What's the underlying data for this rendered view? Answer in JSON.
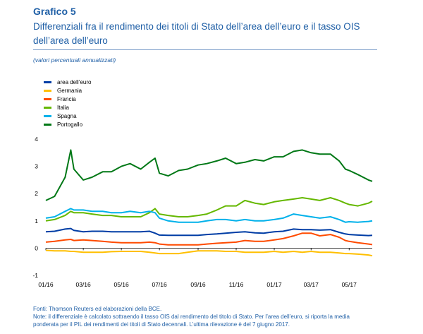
{
  "header": {
    "chart_number": "Grafico 5",
    "title_line1": "Differenziali fra il rendimento dei titoli di Stato dell’area dell’euro e il tasso OIS",
    "title_line2": "dell’area dell’euro",
    "units": "(valori percentuali annualizzati)"
  },
  "footnotes": {
    "source": "Fonti: Thomson Reuters ed elaborazioni della BCE.",
    "note_line1": "Note: il differenziale è calcolato sottraendo il tasso OIS dal rendimento del titolo di Stato. Per l’area dell’euro, si riporta la media",
    "note_line2": "ponderata per il PIL dei rendimenti dei titoli di Stato decennali. L’ultima rilevazione è del 7 giugno 2017."
  },
  "chart_data": {
    "type": "line",
    "title": "Differenziali fra il rendimento dei titoli di Stato dell’area dell’euro e il tasso OIS dell’area dell’euro",
    "xlabel": "",
    "ylabel": "(valori percentuali annualizzati)",
    "ylim": [
      -1,
      4
    ],
    "yticks": [
      -1,
      0,
      1,
      2,
      3,
      4
    ],
    "x_start": "2016-01-01",
    "x_end": "2017-06-07",
    "x_tick_labels": [
      "01/16",
      "03/16",
      "05/16",
      "07/16",
      "09/16",
      "11/16",
      "01/17",
      "03/17",
      "05/17"
    ],
    "x_ticks": [
      "2016-01-01",
      "2016-03-01",
      "2016-05-01",
      "2016-07-01",
      "2016-09-01",
      "2016-11-01",
      "2017-01-01",
      "2017-03-01",
      "2017-05-01"
    ],
    "grid": false,
    "legend_position": "top-left",
    "x": [
      "2016-01-01",
      "2016-01-15",
      "2016-02-01",
      "2016-02-10",
      "2016-02-15",
      "2016-03-01",
      "2016-03-15",
      "2016-04-01",
      "2016-04-15",
      "2016-05-01",
      "2016-05-15",
      "2016-06-01",
      "2016-06-15",
      "2016-06-24",
      "2016-07-01",
      "2016-07-15",
      "2016-08-01",
      "2016-08-15",
      "2016-09-01",
      "2016-09-15",
      "2016-10-01",
      "2016-10-15",
      "2016-11-01",
      "2016-11-15",
      "2016-12-01",
      "2016-12-15",
      "2017-01-01",
      "2017-01-15",
      "2017-02-01",
      "2017-02-15",
      "2017-03-01",
      "2017-03-15",
      "2017-04-01",
      "2017-04-15",
      "2017-04-25",
      "2017-05-01",
      "2017-05-15",
      "2017-06-01",
      "2017-06-07"
    ],
    "series": [
      {
        "name": "area dell’euro",
        "color": "#003da5",
        "values": [
          0.6,
          0.62,
          0.7,
          0.72,
          0.65,
          0.6,
          0.62,
          0.62,
          0.6,
          0.6,
          0.6,
          0.6,
          0.62,
          0.55,
          0.48,
          0.47,
          0.47,
          0.47,
          0.47,
          0.5,
          0.52,
          0.55,
          0.58,
          0.6,
          0.56,
          0.55,
          0.6,
          0.62,
          0.7,
          0.68,
          0.68,
          0.66,
          0.68,
          0.58,
          0.52,
          0.5,
          0.48,
          0.46,
          0.47
        ]
      },
      {
        "name": "Germania",
        "color": "#ffbf00",
        "values": [
          -0.08,
          -0.1,
          -0.1,
          -0.12,
          -0.12,
          -0.15,
          -0.15,
          -0.15,
          -0.13,
          -0.12,
          -0.12,
          -0.12,
          -0.15,
          -0.18,
          -0.2,
          -0.2,
          -0.2,
          -0.15,
          -0.1,
          -0.1,
          -0.1,
          -0.12,
          -0.12,
          -0.15,
          -0.15,
          -0.15,
          -0.12,
          -0.15,
          -0.12,
          -0.15,
          -0.12,
          -0.15,
          -0.15,
          -0.18,
          -0.2,
          -0.2,
          -0.22,
          -0.25,
          -0.28
        ]
      },
      {
        "name": "Francia",
        "color": "#ff4b00",
        "values": [
          0.22,
          0.25,
          0.3,
          0.32,
          0.28,
          0.3,
          0.28,
          0.25,
          0.22,
          0.2,
          0.2,
          0.2,
          0.22,
          0.2,
          0.15,
          0.12,
          0.12,
          0.12,
          0.12,
          0.15,
          0.18,
          0.2,
          0.22,
          0.28,
          0.25,
          0.25,
          0.3,
          0.35,
          0.45,
          0.55,
          0.55,
          0.45,
          0.5,
          0.4,
          0.28,
          0.25,
          0.2,
          0.15,
          0.13
        ]
      },
      {
        "name": "Italia",
        "color": "#65b800",
        "values": [
          1.0,
          1.05,
          1.2,
          1.35,
          1.3,
          1.3,
          1.25,
          1.2,
          1.2,
          1.15,
          1.15,
          1.15,
          1.3,
          1.45,
          1.25,
          1.2,
          1.15,
          1.15,
          1.2,
          1.25,
          1.4,
          1.55,
          1.55,
          1.75,
          1.65,
          1.6,
          1.7,
          1.75,
          1.8,
          1.85,
          1.8,
          1.75,
          1.85,
          1.75,
          1.65,
          1.6,
          1.55,
          1.65,
          1.72
        ]
      },
      {
        "name": "Spagna",
        "color": "#00b1ea",
        "values": [
          1.1,
          1.15,
          1.35,
          1.45,
          1.4,
          1.4,
          1.35,
          1.35,
          1.3,
          1.3,
          1.35,
          1.3,
          1.35,
          1.3,
          1.1,
          1.0,
          0.95,
          0.95,
          0.95,
          1.0,
          1.05,
          1.05,
          1.0,
          1.05,
          1.0,
          1.0,
          1.05,
          1.1,
          1.25,
          1.2,
          1.15,
          1.1,
          1.15,
          1.05,
          0.95,
          0.97,
          0.95,
          0.98,
          1.0
        ]
      },
      {
        "name": "Portogallo",
        "color": "#007816",
        "values": [
          1.75,
          1.9,
          2.6,
          3.6,
          2.9,
          2.5,
          2.6,
          2.8,
          2.8,
          3.0,
          3.1,
          2.9,
          3.15,
          3.3,
          2.75,
          2.65,
          2.85,
          2.9,
          3.05,
          3.1,
          3.2,
          3.3,
          3.1,
          3.15,
          3.25,
          3.2,
          3.35,
          3.35,
          3.55,
          3.6,
          3.5,
          3.45,
          3.45,
          3.2,
          2.9,
          2.85,
          2.7,
          2.5,
          2.45
        ]
      }
    ]
  }
}
